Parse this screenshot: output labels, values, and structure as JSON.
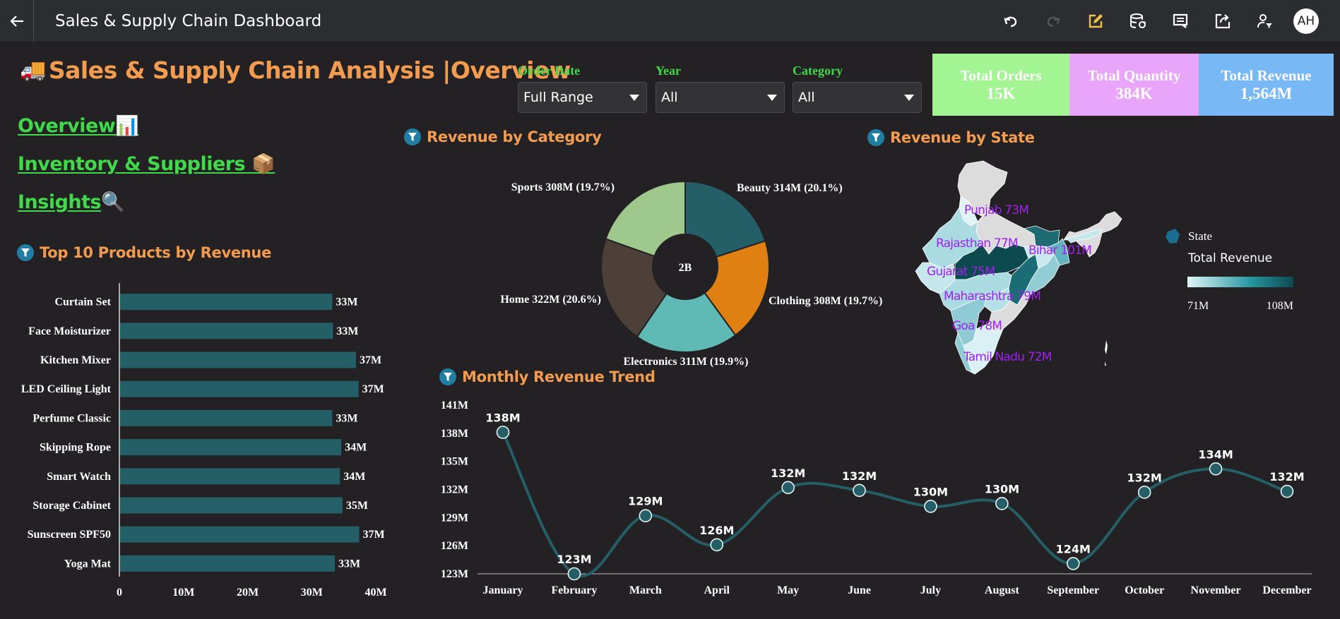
{
  "topbar": {
    "back_icon": "arrow-left-icon",
    "title": "Sales & Supply Chain Dashboard",
    "icons": [
      "undo-icon",
      "redo-icon",
      "edit-icon",
      "data-refresh-icon",
      "comment-icon",
      "share-icon",
      "user-filter-icon"
    ],
    "avatar_initials": "AH"
  },
  "page": {
    "title_emoji": "🚚",
    "title": "Sales & Supply Chain Analysis |Overview"
  },
  "filters": [
    {
      "label": "Order Date",
      "value": "Full Range"
    },
    {
      "label": "Year",
      "value": "All"
    },
    {
      "label": "Category",
      "value": "All"
    }
  ],
  "kpis": [
    {
      "label": "Total Orders",
      "value": "15K",
      "color": "#a3f493"
    },
    {
      "label": "Total Quantity",
      "value": "384K",
      "color": "#e9a5f9"
    },
    {
      "label": "Total Revenue",
      "value": "1,564M",
      "color": "#78b8f4"
    }
  ],
  "nav": [
    {
      "label": "Overview",
      "emoji": "📊"
    },
    {
      "label": "Inventory & Suppliers",
      "emoji": "📦"
    },
    {
      "label": "Insights",
      "emoji": "🔍"
    }
  ],
  "colors": {
    "accent_orange": "#f39c50",
    "nav_green": "#3fd94a",
    "bar_teal": "#245e66",
    "line_teal": "#245e66",
    "map_label_purple": "#a020f0"
  },
  "chart_data": [
    {
      "id": "top-products",
      "type": "bar",
      "orientation": "horizontal",
      "title": "Top 10 Products by Revenue",
      "categories": [
        "Curtain Set",
        "Face Moisturizer",
        "Kitchen Mixer",
        "LED Ceiling Light",
        "Perfume Classic",
        "Skipping Rope",
        "Smart Watch",
        "Storage Cabinet",
        "Sunscreen SPF50",
        "Yoga Mat"
      ],
      "values": [
        33.1,
        33.2,
        36.8,
        37.2,
        33.1,
        34.5,
        34.3,
        34.7,
        37.3,
        33.5
      ],
      "data_labels": [
        "33M",
        "33M",
        "37M",
        "37M",
        "33M",
        "34M",
        "34M",
        "35M",
        "37M",
        "33M"
      ],
      "xlim": [
        0,
        40
      ],
      "xticks": [
        "0",
        "10M",
        "20M",
        "30M",
        "40M"
      ]
    },
    {
      "id": "revenue-by-category",
      "type": "pie",
      "donut": true,
      "title": "Revenue by Category",
      "center_label": "2B",
      "slices": [
        {
          "name": "Beauty",
          "value": 314,
          "label": "Beauty 314M (20.1%)",
          "color": "#245e66"
        },
        {
          "name": "Clothing",
          "value": 308,
          "label": "Clothing 308M (19.7%)",
          "color": "#e07f12"
        },
        {
          "name": "Electronics",
          "value": 311,
          "label": "Electronics 311M (19.9%)",
          "color": "#5fb9b5"
        },
        {
          "name": "Home",
          "value": 322,
          "label": "Home 322M (20.6%)",
          "color": "#4c4039"
        },
        {
          "name": "Sports",
          "value": 308,
          "label": "Sports 308M (19.7%)",
          "color": "#9fc88c"
        }
      ]
    },
    {
      "id": "revenue-by-state",
      "type": "heatmap",
      "subtype": "choropleth",
      "title": "Revenue by State",
      "regions": [
        {
          "name": "Punjab",
          "label": "Punjab 73M",
          "value": 73
        },
        {
          "name": "Rajasthan",
          "label": "Rajasthan 77M",
          "value": 77
        },
        {
          "name": "Bihar",
          "label": "Bihar 101M",
          "value": 101
        },
        {
          "name": "Gujarat",
          "label": "Gujarat 75M",
          "value": 75
        },
        {
          "name": "Maharashtra",
          "label": "Maharashtra 79M",
          "value": 79
        },
        {
          "name": "Goa",
          "label": "Goa 78M",
          "value": 78
        },
        {
          "name": "Tamil Nadu",
          "label": "Tamil Nadu 72M",
          "value": 72
        }
      ],
      "legend": {
        "shape_label": "State",
        "title": "Total Revenue",
        "min_label": "71M",
        "max_label": "108M",
        "min": 71,
        "max": 108,
        "placement": "right"
      }
    },
    {
      "id": "monthly-revenue",
      "type": "line",
      "title": "Monthly Revenue Trend",
      "categories": [
        "January",
        "February",
        "March",
        "April",
        "May",
        "June",
        "July",
        "August",
        "September",
        "October",
        "November",
        "December"
      ],
      "values": [
        138.1,
        123.0,
        129.2,
        126.1,
        132.2,
        131.9,
        130.2,
        130.5,
        124.1,
        131.7,
        134.2,
        131.8
      ],
      "data_labels": [
        "138M",
        "123M",
        "129M",
        "126M",
        "132M",
        "132M",
        "130M",
        "130M",
        "124M",
        "132M",
        "134M",
        "132M"
      ],
      "ylim": [
        123,
        141
      ],
      "yticks": [
        {
          "v": 141,
          "label": "141M"
        },
        {
          "v": 138,
          "label": "138M"
        },
        {
          "v": 135,
          "label": "135M"
        },
        {
          "v": 132,
          "label": "132M"
        },
        {
          "v": 129,
          "label": "129M"
        },
        {
          "v": 126,
          "label": "126M"
        },
        {
          "v": 123,
          "label": "123M"
        }
      ]
    }
  ]
}
